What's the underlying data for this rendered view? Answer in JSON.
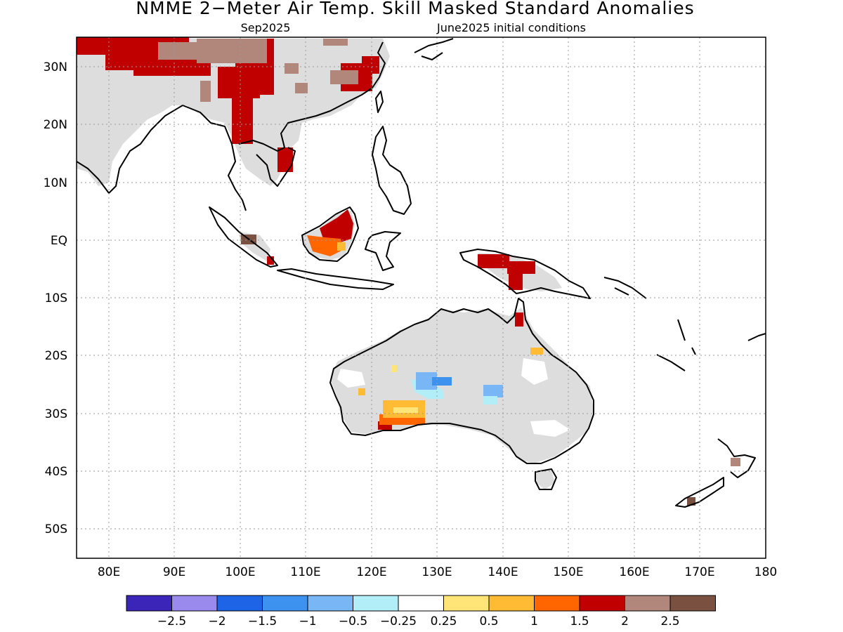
{
  "title": "NMME 2−Meter Air Temp. Skill Masked Standard Anomalies",
  "valid_month": "Sep2025",
  "initial_conditions": "June2025 initial conditions",
  "map": {
    "lon_range": [
      75,
      180
    ],
    "lat_range": [
      -55,
      35
    ],
    "grid": "dotted",
    "x_ticks": [
      "80E",
      "90E",
      "100E",
      "110E",
      "120E",
      "130E",
      "140E",
      "150E",
      "160E",
      "170E",
      "180"
    ],
    "y_ticks": [
      "30N",
      "20N",
      "10N",
      "EQ",
      "10S",
      "20S",
      "30S",
      "40S",
      "50S"
    ]
  },
  "colorbar": {
    "colors": [
      "#3b25b8",
      "#9b8aee",
      "#1e64e6",
      "#3d92f0",
      "#78b6f5",
      "#b2eef8",
      "#ffffff",
      "#ffe577",
      "#ffbb33",
      "#ff6600",
      "#c00000",
      "#b0877a",
      "#7a5040"
    ],
    "labels": [
      "−2.5",
      "−2",
      "−1.5",
      "−1",
      "−0.5",
      "−0.25",
      "0.25",
      "0.5",
      "1",
      "1.5",
      "2",
      "2.5"
    ],
    "masked_color": "#dddddd"
  },
  "regions": {
    "south_asia": {
      "label": "South & East Asia",
      "mostly": "warm anomalies +1.5 to +2.5 over China, Himalaya and Indochina; masked grey elsewhere"
    },
    "maritime_continent": {
      "label": "Borneo / New Guinea",
      "mostly": "warm anomalies +0.5 to +2 over Borneo and New Guinea"
    },
    "australia": {
      "label": "Australia",
      "mostly": "masked grey with small cool anomalies in the interior and a warm patch in the south-west"
    }
  }
}
